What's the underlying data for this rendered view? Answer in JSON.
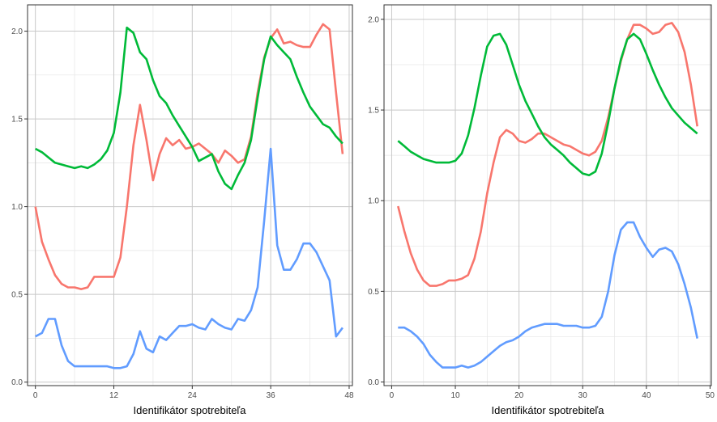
{
  "chart_data": [
    {
      "type": "line",
      "xlabel": "Identifikátor spotrebiteľa",
      "ylabel": "",
      "title": "",
      "xlim": [
        -1.2,
        48.5
      ],
      "ylim": [
        -0.02,
        2.15
      ],
      "x_ticks": [
        0,
        12,
        24,
        36,
        48
      ],
      "y_ticks": [
        0.0,
        0.5,
        1.0,
        1.5,
        2.0
      ],
      "x_tick_labels": [
        "0",
        "12",
        "24",
        "36",
        "48"
      ],
      "y_tick_labels": [
        "0.0",
        "0.5",
        "1.0",
        "1.5",
        "2.0"
      ],
      "grid": true,
      "legend": "none",
      "series": [
        {
          "color": "#F8766D",
          "x": [
            0,
            1,
            2,
            3,
            4,
            5,
            6,
            7,
            8,
            9,
            10,
            11,
            12,
            13,
            14,
            15,
            16,
            17,
            18,
            19,
            20,
            21,
            22,
            23,
            24,
            25,
            26,
            27,
            28,
            29,
            30,
            31,
            32,
            33,
            34,
            35,
            36,
            37,
            38,
            39,
            40,
            41,
            42,
            43,
            44,
            45,
            46,
            47
          ],
          "values": [
            1.0,
            0.8,
            0.7,
            0.61,
            0.56,
            0.54,
            0.54,
            0.53,
            0.54,
            0.6,
            0.6,
            0.6,
            0.6,
            0.71,
            1.0,
            1.35,
            1.58,
            1.38,
            1.15,
            1.3,
            1.39,
            1.35,
            1.38,
            1.33,
            1.34,
            1.36,
            1.33,
            1.3,
            1.25,
            1.32,
            1.29,
            1.25,
            1.27,
            1.4,
            1.65,
            1.85,
            1.96,
            2.01,
            1.93,
            1.94,
            1.92,
            1.91,
            1.91,
            1.98,
            2.04,
            2.01,
            1.65,
            1.3
          ]
        },
        {
          "color": "#00BA38",
          "x": [
            0,
            1,
            2,
            3,
            4,
            5,
            6,
            7,
            8,
            9,
            10,
            11,
            12,
            13,
            14,
            15,
            16,
            17,
            18,
            19,
            20,
            21,
            22,
            23,
            24,
            25,
            26,
            27,
            28,
            29,
            30,
            31,
            32,
            33,
            34,
            35,
            36,
            37,
            38,
            39,
            40,
            41,
            42,
            43,
            44,
            45,
            46,
            47
          ],
          "values": [
            1.33,
            1.31,
            1.28,
            1.25,
            1.24,
            1.23,
            1.22,
            1.23,
            1.22,
            1.24,
            1.27,
            1.32,
            1.42,
            1.65,
            2.02,
            1.99,
            1.88,
            1.84,
            1.72,
            1.63,
            1.59,
            1.52,
            1.46,
            1.4,
            1.34,
            1.26,
            1.28,
            1.3,
            1.2,
            1.13,
            1.1,
            1.18,
            1.25,
            1.38,
            1.62,
            1.84,
            1.97,
            1.92,
            1.88,
            1.84,
            1.74,
            1.65,
            1.57,
            1.52,
            1.47,
            1.45,
            1.4,
            1.36
          ]
        },
        {
          "color": "#619CFF",
          "x": [
            0,
            1,
            2,
            3,
            4,
            5,
            6,
            7,
            8,
            9,
            10,
            11,
            12,
            13,
            14,
            15,
            16,
            17,
            18,
            19,
            20,
            21,
            22,
            23,
            24,
            25,
            26,
            27,
            28,
            29,
            30,
            31,
            32,
            33,
            34,
            35,
            36,
            37,
            38,
            39,
            40,
            41,
            42,
            43,
            44,
            45,
            46,
            47
          ],
          "values": [
            0.26,
            0.28,
            0.36,
            0.36,
            0.21,
            0.12,
            0.09,
            0.09,
            0.09,
            0.09,
            0.09,
            0.09,
            0.08,
            0.08,
            0.09,
            0.16,
            0.29,
            0.19,
            0.17,
            0.26,
            0.24,
            0.28,
            0.32,
            0.32,
            0.33,
            0.31,
            0.3,
            0.36,
            0.33,
            0.31,
            0.3,
            0.36,
            0.35,
            0.41,
            0.54,
            0.92,
            1.33,
            0.78,
            0.64,
            0.64,
            0.7,
            0.79,
            0.79,
            0.74,
            0.66,
            0.58,
            0.26,
            0.31
          ]
        }
      ]
    },
    {
      "type": "line",
      "xlabel": "Identifikátor spotrebiteľa",
      "ylabel": "",
      "title": "",
      "xlim": [
        -1.2,
        50.2
      ],
      "ylim": [
        -0.02,
        2.08
      ],
      "x_ticks": [
        0,
        10,
        20,
        30,
        40,
        50
      ],
      "y_ticks": [
        0.0,
        0.5,
        1.0,
        1.5,
        2.0
      ],
      "x_tick_labels": [
        "0",
        "10",
        "20",
        "30",
        "40",
        "50"
      ],
      "y_tick_labels": [
        "0.0",
        "0.5",
        "1.0",
        "1.5",
        "2.0"
      ],
      "grid": true,
      "legend": "none",
      "series": [
        {
          "color": "#F8766D",
          "x": [
            1,
            2,
            3,
            4,
            5,
            6,
            7,
            8,
            9,
            10,
            11,
            12,
            13,
            14,
            15,
            16,
            17,
            18,
            19,
            20,
            21,
            22,
            23,
            24,
            25,
            26,
            27,
            28,
            29,
            30,
            31,
            32,
            33,
            34,
            35,
            36,
            37,
            38,
            39,
            40,
            41,
            42,
            43,
            44,
            45,
            46,
            47,
            48
          ],
          "values": [
            0.97,
            0.83,
            0.71,
            0.62,
            0.56,
            0.53,
            0.53,
            0.54,
            0.56,
            0.56,
            0.57,
            0.59,
            0.68,
            0.83,
            1.04,
            1.21,
            1.35,
            1.39,
            1.37,
            1.33,
            1.32,
            1.34,
            1.37,
            1.37,
            1.35,
            1.33,
            1.31,
            1.3,
            1.28,
            1.26,
            1.25,
            1.27,
            1.33,
            1.46,
            1.62,
            1.77,
            1.89,
            1.97,
            1.97,
            1.95,
            1.92,
            1.93,
            1.97,
            1.98,
            1.93,
            1.82,
            1.64,
            1.41
          ]
        },
        {
          "color": "#00BA38",
          "x": [
            1,
            2,
            3,
            4,
            5,
            6,
            7,
            8,
            9,
            10,
            11,
            12,
            13,
            14,
            15,
            16,
            17,
            18,
            19,
            20,
            21,
            22,
            23,
            24,
            25,
            26,
            27,
            28,
            29,
            30,
            31,
            32,
            33,
            34,
            35,
            36,
            37,
            38,
            39,
            40,
            41,
            42,
            43,
            44,
            45,
            46,
            47,
            48
          ],
          "values": [
            1.33,
            1.3,
            1.27,
            1.25,
            1.23,
            1.22,
            1.21,
            1.21,
            1.21,
            1.22,
            1.26,
            1.36,
            1.51,
            1.69,
            1.85,
            1.91,
            1.92,
            1.86,
            1.75,
            1.64,
            1.55,
            1.48,
            1.41,
            1.35,
            1.31,
            1.28,
            1.25,
            1.21,
            1.18,
            1.15,
            1.14,
            1.16,
            1.26,
            1.43,
            1.62,
            1.78,
            1.89,
            1.92,
            1.89,
            1.81,
            1.72,
            1.64,
            1.57,
            1.51,
            1.47,
            1.43,
            1.4,
            1.37
          ]
        },
        {
          "color": "#619CFF",
          "x": [
            1,
            2,
            3,
            4,
            5,
            6,
            7,
            8,
            9,
            10,
            11,
            12,
            13,
            14,
            15,
            16,
            17,
            18,
            19,
            20,
            21,
            22,
            23,
            24,
            25,
            26,
            27,
            28,
            29,
            30,
            31,
            32,
            33,
            34,
            35,
            36,
            37,
            38,
            39,
            40,
            41,
            42,
            43,
            44,
            45,
            46,
            47,
            48
          ],
          "values": [
            0.3,
            0.3,
            0.28,
            0.25,
            0.21,
            0.15,
            0.11,
            0.08,
            0.08,
            0.08,
            0.09,
            0.08,
            0.09,
            0.11,
            0.14,
            0.17,
            0.2,
            0.22,
            0.23,
            0.25,
            0.28,
            0.3,
            0.31,
            0.32,
            0.32,
            0.32,
            0.31,
            0.31,
            0.31,
            0.3,
            0.3,
            0.31,
            0.36,
            0.5,
            0.7,
            0.84,
            0.88,
            0.88,
            0.8,
            0.74,
            0.69,
            0.73,
            0.74,
            0.72,
            0.65,
            0.54,
            0.41,
            0.24
          ]
        }
      ]
    }
  ]
}
